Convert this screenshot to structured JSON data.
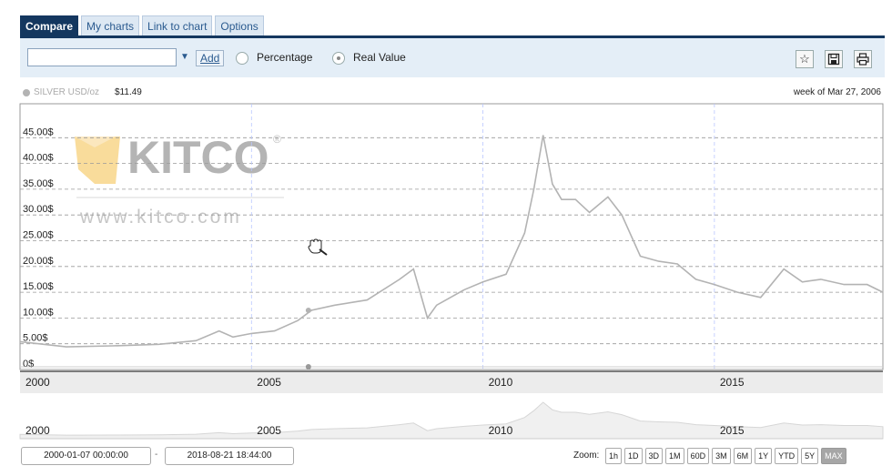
{
  "tabs": [
    "Compare",
    "My charts",
    "Link to chart",
    "Options"
  ],
  "toolbar": {
    "symbol_value": "",
    "add_label": "Add",
    "percentage_label": "Percentage",
    "real_value_label": "Real Value",
    "selected_mode": "Real Value"
  },
  "legend": {
    "series": "SILVER USD/oz",
    "price": "$11.49",
    "date": "week of Mar 27, 2006"
  },
  "watermark": {
    "brand": "KITCO",
    "url": "www.kitco.com"
  },
  "range": {
    "from": "2000-01-07 00:00:00",
    "separator": "-",
    "to": "2018-08-21 18:44:00"
  },
  "zoom": {
    "label": "Zoom:",
    "buttons": [
      "1h",
      "1D",
      "3D",
      "1M",
      "60D",
      "3M",
      "6M",
      "1Y",
      "YTD",
      "5Y",
      "MAX"
    ],
    "active": "MAX"
  },
  "colors": {
    "line": "#b3b3b3",
    "accent": "#14375f",
    "toolbar_bg": "#e4eef7"
  },
  "chart_data": {
    "type": "line",
    "ylim": [
      0,
      50
    ],
    "xlim": [
      2000.0,
      2018.64
    ],
    "yticks": [
      "45.00$",
      "40.00$",
      "35.00$",
      "30.00$",
      "25.00$",
      "20.00$",
      "15.00$",
      "10.00$",
      "5.00$",
      "0$"
    ],
    "ytick_values": [
      45,
      40,
      35,
      30,
      25,
      20,
      15,
      10,
      5,
      0
    ],
    "xticks": [
      "2000",
      "2005",
      "2010",
      "2015"
    ],
    "xtick_values": [
      2000,
      2005,
      2010,
      2015
    ],
    "hover_point": {
      "x": 2006.23,
      "y": 11.49
    },
    "series": [
      {
        "x": [
          2000.0,
          2001.0,
          2002.0,
          2003.0,
          2003.8,
          2004.3,
          2004.6,
          2005.0,
          2005.5,
          2006.0,
          2006.3,
          2006.8,
          2007.5,
          2008.2,
          2008.5,
          2008.8,
          2009.0,
          2009.6,
          2010.0,
          2010.5,
          2010.9,
          2011.1,
          2011.3,
          2011.5,
          2011.7,
          2012.0,
          2012.3,
          2012.7,
          2013.0,
          2013.4,
          2013.8,
          2014.2,
          2014.6,
          2015.0,
          2015.5,
          2016.0,
          2016.5,
          2016.9,
          2017.3,
          2017.8,
          2018.3,
          2018.64
        ],
        "y": [
          5.4,
          4.4,
          4.6,
          4.9,
          5.6,
          7.5,
          6.3,
          7.0,
          7.5,
          9.5,
          11.5,
          12.5,
          13.5,
          17.5,
          19.5,
          10.0,
          12.5,
          15.5,
          17.0,
          18.5,
          26.5,
          35.0,
          45.5,
          36.0,
          33.0,
          33.0,
          30.5,
          33.5,
          30.0,
          22.0,
          21.0,
          20.5,
          17.5,
          16.5,
          15.0,
          14.0,
          19.5,
          17.0,
          17.5,
          16.5,
          16.5,
          15.0
        ]
      }
    ]
  }
}
